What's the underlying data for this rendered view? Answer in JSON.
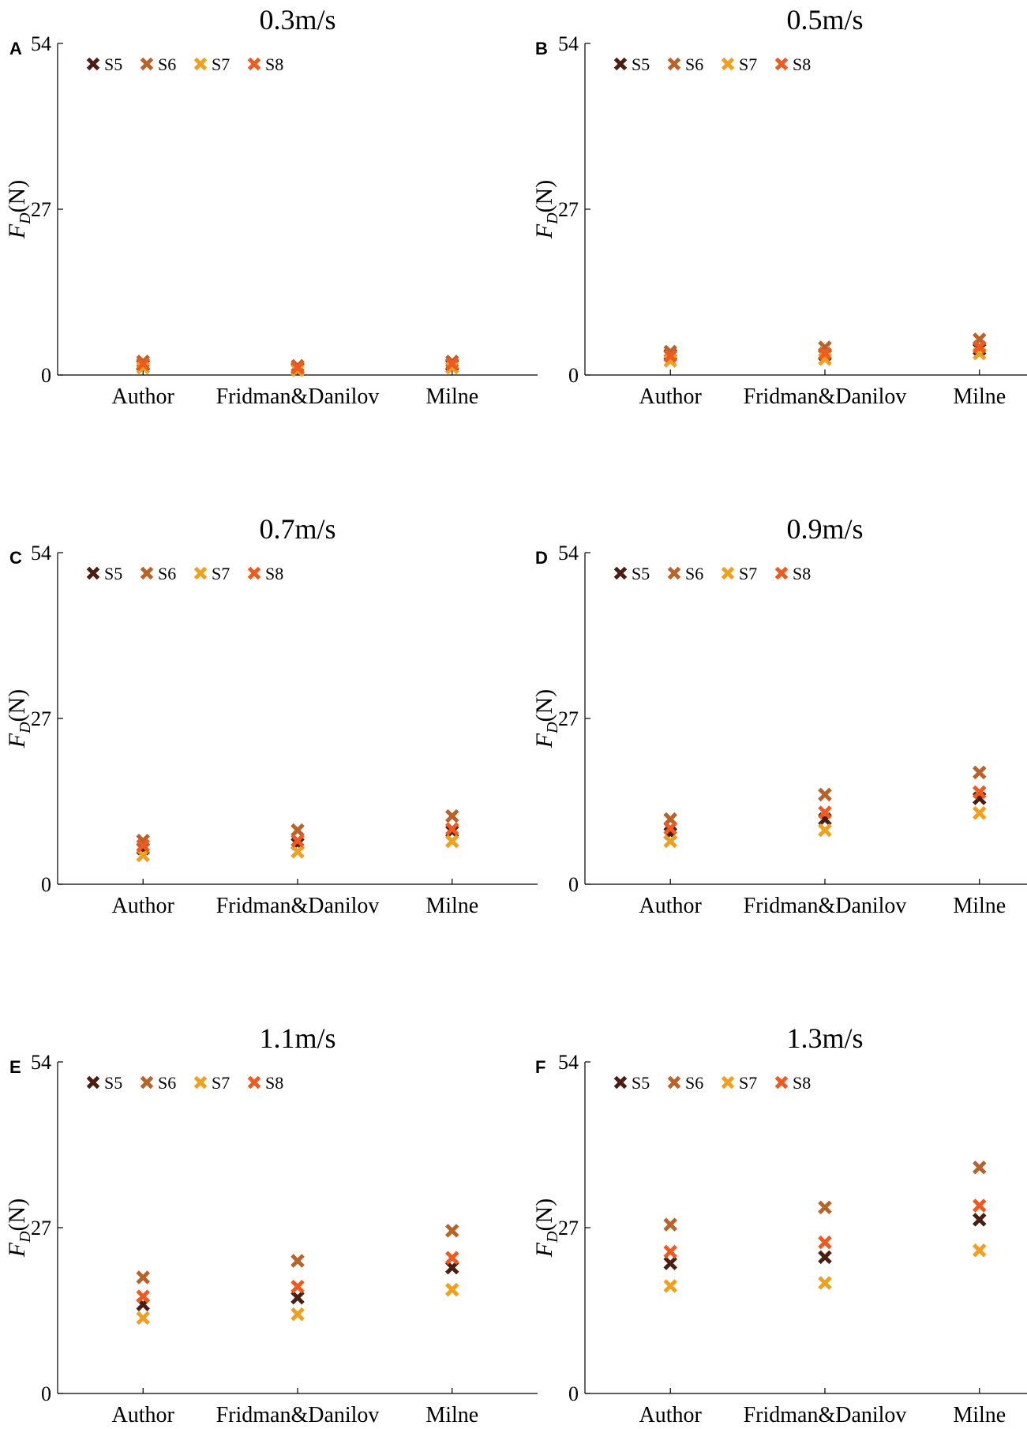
{
  "figure": {
    "series_colors": {
      "S5": "#4a1f12",
      "S6": "#b8632a",
      "S7": "#f0a020",
      "S8": "#ee5a1f"
    },
    "marker_icon": "cross-marker-icon"
  },
  "chart_data": [
    {
      "type": "scatter",
      "panel_label": "A",
      "title": "0.3m/s",
      "ylabel_main": "F",
      "ylabel_sub": "D",
      "ylabel_unit": "(N)",
      "xlabel": "",
      "ylim": [
        0,
        54
      ],
      "yticks": [
        0,
        27,
        54
      ],
      "categories": [
        "Author",
        "Fridman&Danilov",
        "Milne"
      ],
      "legend": [
        "S5",
        "S6",
        "S7",
        "S8"
      ],
      "series": [
        {
          "name": "S5",
          "values": [
            1.6,
            1.1,
            1.6
          ]
        },
        {
          "name": "S6",
          "values": [
            2.2,
            1.5,
            2.2
          ]
        },
        {
          "name": "S7",
          "values": [
            1.2,
            0.8,
            1.2
          ]
        },
        {
          "name": "S8",
          "values": [
            1.8,
            1.2,
            1.8
          ]
        }
      ]
    },
    {
      "type": "scatter",
      "panel_label": "B",
      "title": "0.5m/s",
      "ylabel_main": "F",
      "ylabel_sub": "D",
      "ylabel_unit": "(N)",
      "xlabel": "",
      "ylim": [
        0,
        54
      ],
      "yticks": [
        0,
        27,
        54
      ],
      "categories": [
        "Author",
        "Fridman&Danilov",
        "Milne"
      ],
      "legend": [
        "S5",
        "S6",
        "S7",
        "S8"
      ],
      "series": [
        {
          "name": "S5",
          "values": [
            3.3,
            3.3,
            4.2
          ]
        },
        {
          "name": "S6",
          "values": [
            3.8,
            4.5,
            5.8
          ]
        },
        {
          "name": "S7",
          "values": [
            2.3,
            2.6,
            3.5
          ]
        },
        {
          "name": "S8",
          "values": [
            3.1,
            3.5,
            4.6
          ]
        }
      ]
    },
    {
      "type": "scatter",
      "panel_label": "C",
      "title": "0.7m/s",
      "ylabel_main": "F",
      "ylabel_sub": "D",
      "ylabel_unit": "(N)",
      "xlabel": "",
      "ylim": [
        0,
        54
      ],
      "yticks": [
        0,
        27,
        54
      ],
      "categories": [
        "Author",
        "Fridman&Danilov",
        "Milne"
      ],
      "legend": [
        "S5",
        "S6",
        "S7",
        "S8"
      ],
      "series": [
        {
          "name": "S5",
          "values": [
            5.8,
            6.6,
            8.6
          ]
        },
        {
          "name": "S6",
          "values": [
            7.1,
            8.8,
            11.1
          ]
        },
        {
          "name": "S7",
          "values": [
            4.7,
            5.3,
            7.0
          ]
        },
        {
          "name": "S8",
          "values": [
            6.3,
            7.1,
            9.0
          ]
        }
      ]
    },
    {
      "type": "scatter",
      "panel_label": "D",
      "title": "0.9m/s",
      "ylabel_main": "F",
      "ylabel_sub": "D",
      "ylabel_unit": "(N)",
      "xlabel": "",
      "ylim": [
        0,
        54
      ],
      "yticks": [
        0,
        27,
        54
      ],
      "categories": [
        "Author",
        "Fridman&Danilov",
        "Milne"
      ],
      "legend": [
        "S5",
        "S6",
        "S7",
        "S8"
      ],
      "series": [
        {
          "name": "S5",
          "values": [
            8.3,
            10.6,
            14.0
          ]
        },
        {
          "name": "S6",
          "values": [
            10.6,
            14.6,
            18.2
          ]
        },
        {
          "name": "S7",
          "values": [
            7.0,
            8.8,
            11.6
          ]
        },
        {
          "name": "S8",
          "values": [
            9.1,
            11.7,
            15.0
          ]
        }
      ]
    },
    {
      "type": "scatter",
      "panel_label": "E",
      "title": "1.1m/s",
      "ylabel_main": "F",
      "ylabel_sub": "D",
      "ylabel_unit": "(N)",
      "xlabel": "",
      "ylim": [
        0,
        54
      ],
      "yticks": [
        0,
        27,
        54
      ],
      "categories": [
        "Author",
        "Fridman&Danilov",
        "Milne"
      ],
      "legend": [
        "S5",
        "S6",
        "S7",
        "S8"
      ],
      "series": [
        {
          "name": "S5",
          "values": [
            14.5,
            15.6,
            20.5
          ]
        },
        {
          "name": "S6",
          "values": [
            18.9,
            21.6,
            26.5
          ]
        },
        {
          "name": "S7",
          "values": [
            12.3,
            12.9,
            16.9
          ]
        },
        {
          "name": "S8",
          "values": [
            15.8,
            17.4,
            22.1
          ]
        }
      ]
    },
    {
      "type": "scatter",
      "panel_label": "F",
      "title": "1.3m/s",
      "ylabel_main": "F",
      "ylabel_sub": "D",
      "ylabel_unit": "(N)",
      "xlabel": "",
      "ylim": [
        0,
        54
      ],
      "yticks": [
        0,
        27,
        54
      ],
      "categories": [
        "Author",
        "Fridman&Danilov",
        "Milne"
      ],
      "legend": [
        "S5",
        "S6",
        "S7",
        "S8"
      ],
      "series": [
        {
          "name": "S5",
          "values": [
            21.2,
            22.2,
            28.3
          ]
        },
        {
          "name": "S6",
          "values": [
            27.5,
            30.3,
            36.8
          ]
        },
        {
          "name": "S7",
          "values": [
            17.5,
            18.0,
            23.3
          ]
        },
        {
          "name": "S8",
          "values": [
            23.1,
            24.6,
            30.6
          ]
        }
      ]
    }
  ]
}
